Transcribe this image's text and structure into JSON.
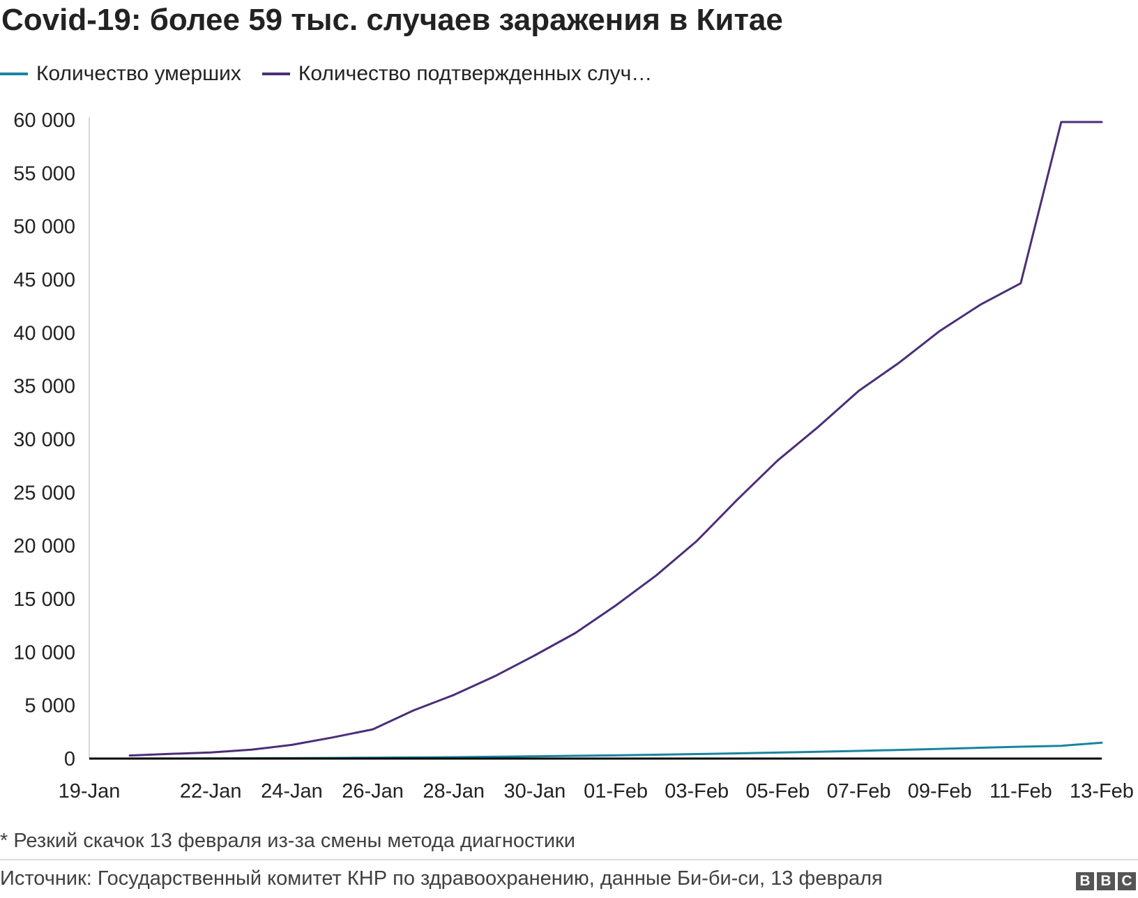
{
  "title": "Covid-19: более 59 тыс. случаев заражения в Китае",
  "colors": {
    "deaths": "#1a84a0",
    "confirmed": "#4b2e78",
    "axis": "#000000",
    "text": "#222222"
  },
  "chart_data": {
    "type": "line",
    "x_ticks": [
      "19-Jan",
      "22-Jan",
      "24-Jan",
      "26-Jan",
      "28-Jan",
      "30-Jan",
      "01-Feb",
      "03-Feb",
      "05-Feb",
      "07-Feb",
      "09-Feb",
      "11-Feb",
      "13-Feb"
    ],
    "x": [
      "20-Jan",
      "21-Jan",
      "22-Jan",
      "23-Jan",
      "24-Jan",
      "25-Jan",
      "26-Jan",
      "27-Jan",
      "28-Jan",
      "29-Jan",
      "30-Jan",
      "31-Jan",
      "01-Feb",
      "02-Feb",
      "03-Feb",
      "04-Feb",
      "05-Feb",
      "06-Feb",
      "07-Feb",
      "08-Feb",
      "09-Feb",
      "10-Feb",
      "11-Feb",
      "12-Feb",
      "13-Feb"
    ],
    "series": [
      {
        "name": "Количество умерших",
        "color_key": "deaths",
        "values": [
          6,
          9,
          17,
          25,
          41,
          56,
          80,
          106,
          132,
          170,
          213,
          259,
          304,
          361,
          425,
          490,
          563,
          636,
          722,
          811,
          908,
          1016,
          1113,
          1200,
          1490
        ]
      },
      {
        "name": "Количество подтвержденных случ…",
        "color_key": "confirmed",
        "values": [
          291,
          440,
          571,
          830,
          1287,
          1975,
          2744,
          4515,
          5974,
          7711,
          9692,
          11791,
          14380,
          17205,
          20438,
          24324,
          28018,
          31161,
          34546,
          37198,
          40171,
          42638,
          44653,
          59804,
          59804
        ]
      }
    ],
    "x_start": "19-Jan",
    "ylim": [
      0,
      60000
    ],
    "y_ticks": [
      0,
      5000,
      10000,
      15000,
      20000,
      25000,
      30000,
      35000,
      40000,
      45000,
      50000,
      55000,
      60000
    ],
    "y_tick_labels": [
      "0",
      "5 000",
      "10 000",
      "15 000",
      "20 000",
      "25 000",
      "30 000",
      "35 000",
      "40 000",
      "45 000",
      "50 000",
      "55 000",
      "60 000"
    ],
    "legend_position": "top-left",
    "grid": false
  },
  "footnote": "* Резкий скачок 13 февраля из-за смены метода диагностики",
  "source": "Источник: Государственный комитет КНР по здравоохранению, данные Би-би-си, 13 февраля",
  "logo": {
    "letters": [
      "B",
      "B",
      "C"
    ]
  }
}
